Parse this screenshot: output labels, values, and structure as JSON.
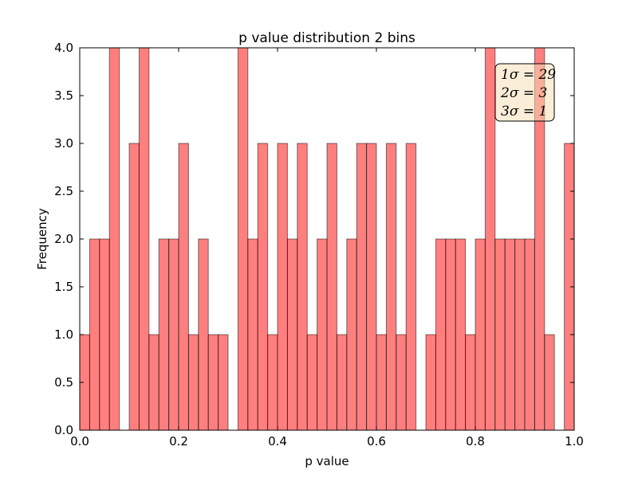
{
  "chart_data": {
    "type": "bar",
    "title": "p value distribution 2 bins",
    "xlabel": "p value",
    "ylabel": "Frequency",
    "xlim": [
      0.0,
      1.0
    ],
    "ylim": [
      0.0,
      4.0
    ],
    "bin_width": 0.02,
    "bin_starts": [
      0.0,
      0.02,
      0.04,
      0.06,
      0.08,
      0.1,
      0.12,
      0.14,
      0.16,
      0.18,
      0.2,
      0.22,
      0.24,
      0.26,
      0.28,
      0.3,
      0.32,
      0.34,
      0.36,
      0.38,
      0.4,
      0.42,
      0.44,
      0.46,
      0.48,
      0.5,
      0.52,
      0.54,
      0.56,
      0.58,
      0.6,
      0.62,
      0.64,
      0.66,
      0.68,
      0.7,
      0.72,
      0.74,
      0.76,
      0.78,
      0.8,
      0.82,
      0.84,
      0.86,
      0.88,
      0.9,
      0.92,
      0.94,
      0.96,
      0.98
    ],
    "values": [
      1,
      2,
      2,
      4,
      0,
      3,
      4,
      1,
      2,
      2,
      3,
      1,
      2,
      1,
      1,
      0,
      4,
      2,
      3,
      1,
      3,
      2,
      3,
      1,
      2,
      3,
      1,
      2,
      3,
      3,
      1,
      3,
      1,
      3,
      0,
      1,
      2,
      2,
      2,
      1,
      2,
      4,
      2,
      2,
      2,
      2,
      4,
      1,
      0,
      3
    ],
    "xticks": [
      "0.0",
      "0.2",
      "0.4",
      "0.6",
      "0.8",
      "1.0"
    ],
    "yticks": [
      "0.0",
      "0.5",
      "1.0",
      "1.5",
      "2.0",
      "2.5",
      "3.0",
      "3.5",
      "4.0"
    ],
    "bar_color": "#ff0000",
    "bar_alpha": 0.5,
    "legend": {
      "placement": "top-right",
      "lines": [
        "1σ = 29",
        "2σ = 3",
        "3σ = 1"
      ],
      "facecolor": "#f5deb3"
    },
    "grid": false
  }
}
